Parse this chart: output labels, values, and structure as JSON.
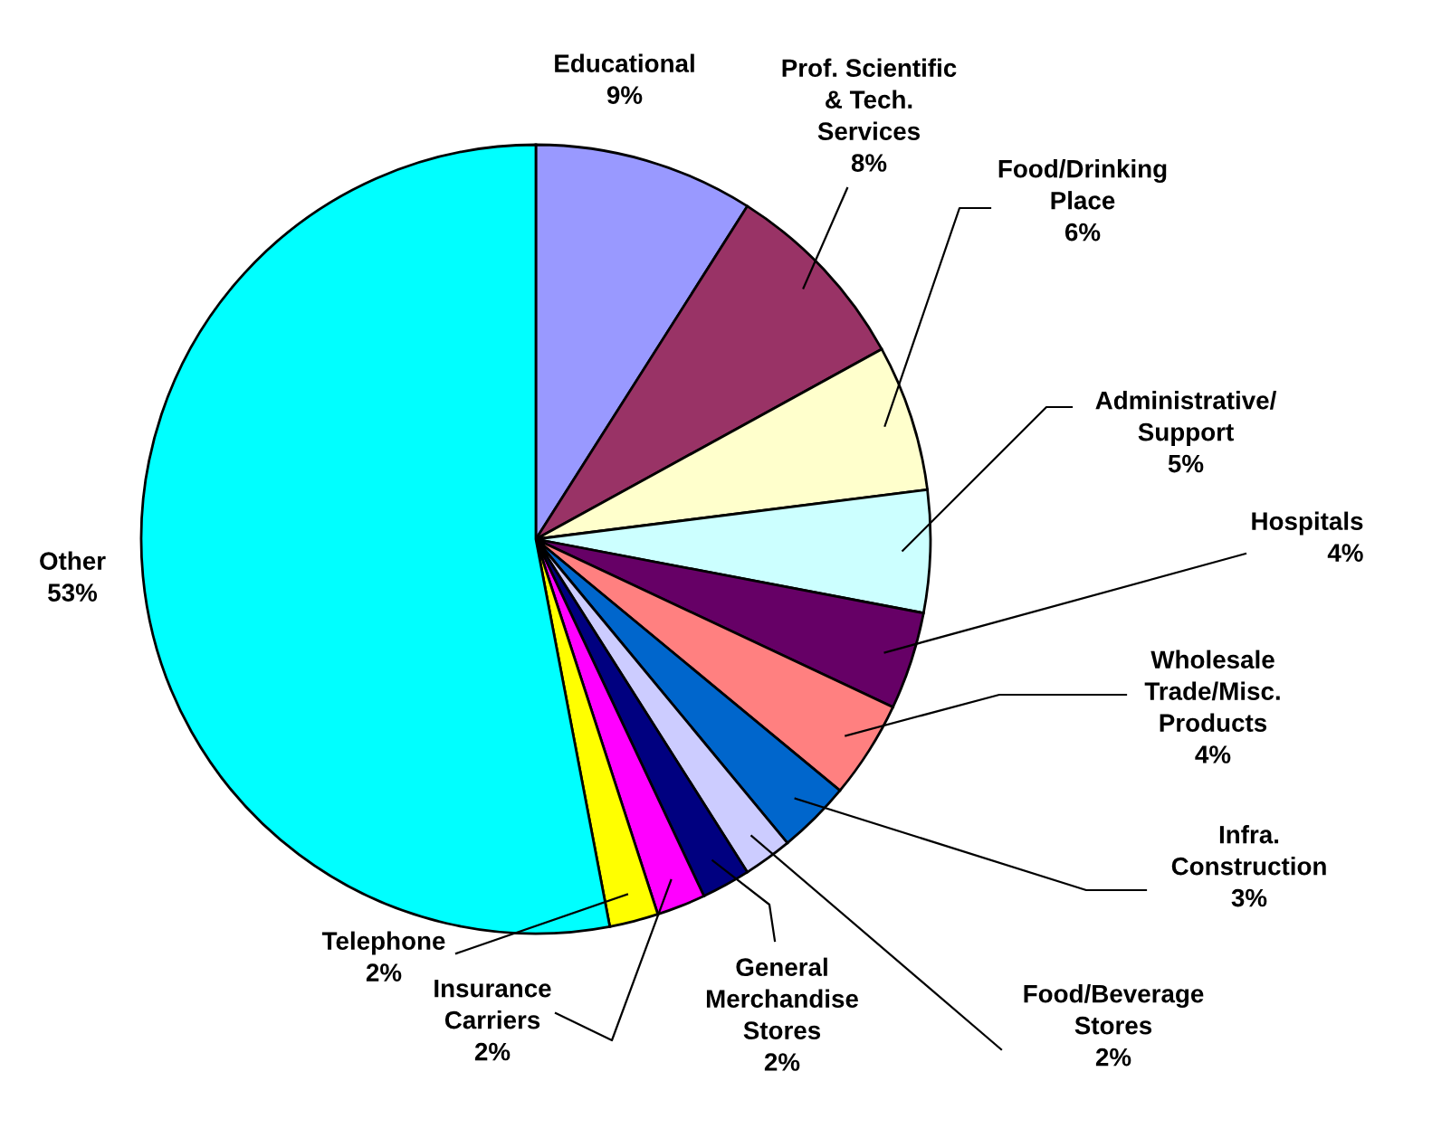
{
  "chart_data": {
    "type": "pie",
    "categories": [
      "Educational",
      "Prof. Scientific\n& Tech.\nServices",
      "Food/Drinking\nPlace",
      "Administrative/\nSupport",
      "Hospitals",
      "Wholesale\nTrade/Misc.\nProducts",
      "Infra.\nConstruction",
      "Food/Beverage\nStores",
      "General\nMerchandise\nStores",
      "Insurance\nCarriers",
      "Telephone",
      "Other"
    ],
    "values": [
      9,
      8,
      6,
      5,
      4,
      4,
      3,
      2,
      2,
      2,
      2,
      53
    ],
    "value_labels": [
      "9%",
      "8%",
      "6%",
      "5%",
      "4%",
      "4%",
      "3%",
      "2%",
      "2%",
      "2%",
      "2%",
      "53%"
    ],
    "colors": [
      "#9999ff",
      "#993366",
      "#ffffcc",
      "#ccffff",
      "#660066",
      "#ff8080",
      "#0066cc",
      "#ccccff",
      "#000080",
      "#ff00ff",
      "#ffff00",
      "#00ffff"
    ]
  }
}
